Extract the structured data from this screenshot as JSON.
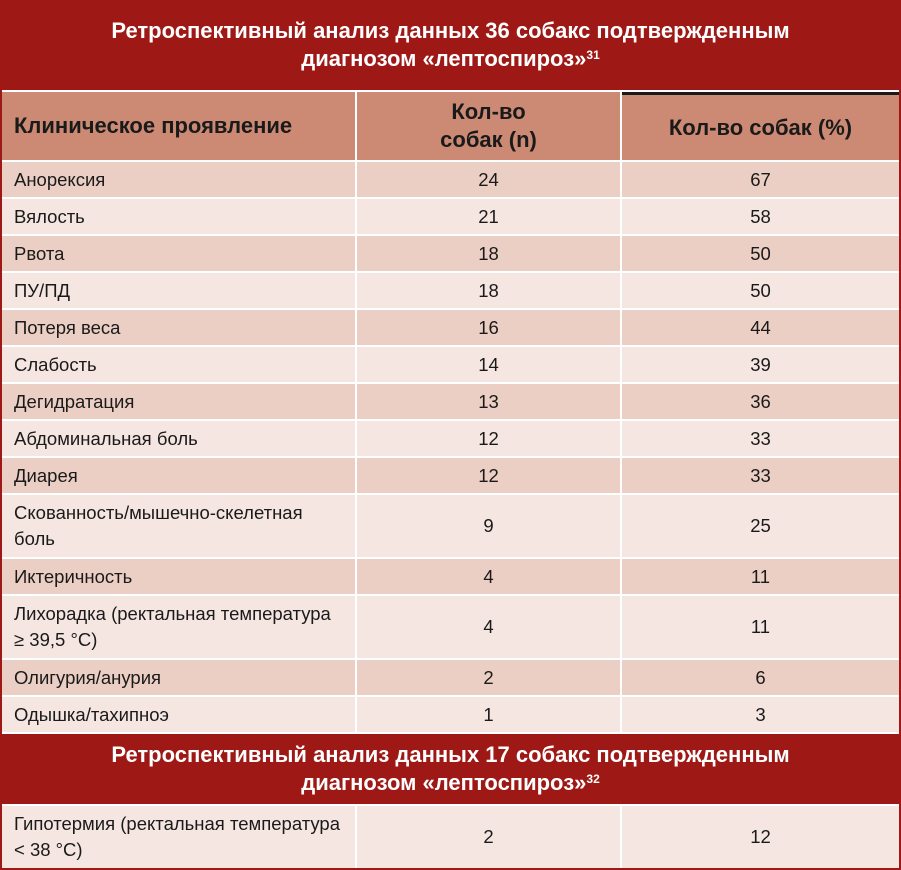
{
  "section1": {
    "title": "Ретроспективный анализ данных 36 собакс подтвержденным диагнозом «лептоспироз»",
    "ref": "31"
  },
  "header": {
    "col1": "Клиническое проявление",
    "col2": "Кол-во собак (n)",
    "col3": "Кол-во собак (%)"
  },
  "rows": [
    {
      "sign": "Анорексия",
      "n": "24",
      "pct": "67"
    },
    {
      "sign": "Вялость",
      "n": "21",
      "pct": "58"
    },
    {
      "sign": "Рвота",
      "n": "18",
      "pct": "50"
    },
    {
      "sign": "ПУ/ПД",
      "n": "18",
      "pct": "50"
    },
    {
      "sign": "Потеря веса",
      "n": "16",
      "pct": "44"
    },
    {
      "sign": "Слабость",
      "n": "14",
      "pct": "39"
    },
    {
      "sign": "Дегидратация",
      "n": "13",
      "pct": "36"
    },
    {
      "sign": "Абдоминальная боль",
      "n": "12",
      "pct": "33"
    },
    {
      "sign": "Диарея",
      "n": "12",
      "pct": "33"
    },
    {
      "sign": "Скованность/мышечно-скелетная боль",
      "n": "9",
      "pct": "25"
    },
    {
      "sign": "Иктеричность",
      "n": "4",
      "pct": "11"
    },
    {
      "sign": "Лихорадка (ректальная температура ≥ 39,5 °C)",
      "n": "4",
      "pct": "11"
    },
    {
      "sign": "Олигурия/анурия",
      "n": "2",
      "pct": "6"
    },
    {
      "sign": "Одышка/тахипноэ",
      "n": "1",
      "pct": "3"
    }
  ],
  "section2": {
    "title": "Ретроспективный анализ данных 17 собакс подтвержденным диагнозом «лептоспироз»",
    "ref": "32",
    "rows": [
      {
        "sign": "Гипотермия (ректальная температура < 38 °C)",
        "n": "2",
        "pct": "12"
      }
    ]
  },
  "colors": {
    "title_bg": "#9e1915",
    "header_bg": "#cc8a74",
    "row_odd": "#eccfc4",
    "row_even": "#f5e6e1"
  }
}
